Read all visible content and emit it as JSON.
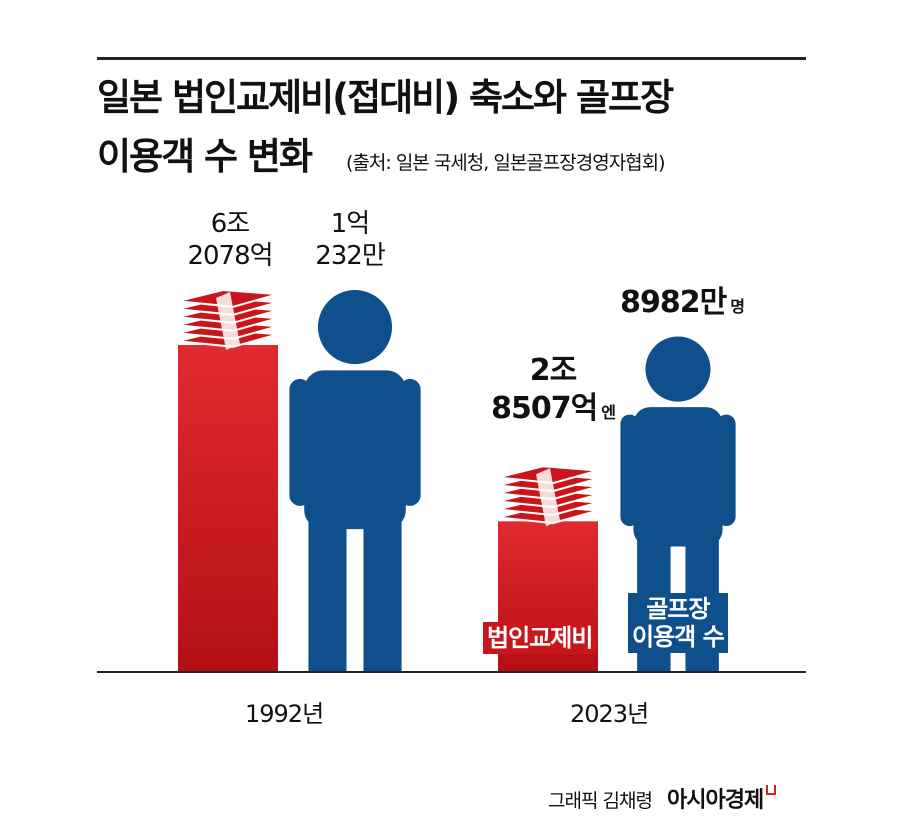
{
  "title": {
    "line1": "일본 법인교제비(접대비) 축소와 골프장",
    "line2": "이용객 수 변화",
    "source": "(출처: 일본 국세청, 일본골프장경영자협회)"
  },
  "colors": {
    "red": "#c8161d",
    "blue": "#0f4f8c",
    "axis": "#222222"
  },
  "icons": {
    "money": "money-stack-icon",
    "person": "person-icon"
  },
  "chart_data": {
    "type": "bar",
    "categories": [
      "1992년",
      "2023년"
    ],
    "series": [
      {
        "name": "법인교제비",
        "values": [
          6.2078,
          2.8507
        ],
        "unit": "조 엔",
        "labels": [
          {
            "line1": "6조",
            "line2": "2078억",
            "unit": ""
          },
          {
            "line1": "2조",
            "line2": "8507억",
            "unit": "엔"
          }
        ]
      },
      {
        "name": "골프장 이용객 수",
        "values": [
          10232,
          8982
        ],
        "unit": "만 명",
        "labels": [
          {
            "line1": "1억",
            "line2": "232만",
            "unit": ""
          },
          {
            "line1": "8982만",
            "line2": "",
            "unit": "명"
          }
        ]
      }
    ]
  },
  "series_labels": {
    "expense": "법인교제비",
    "golf_line1": "골프장",
    "golf_line2": "이용객 수"
  },
  "footer": {
    "credit": "그래픽 김채령",
    "brand": "아시아경제"
  }
}
